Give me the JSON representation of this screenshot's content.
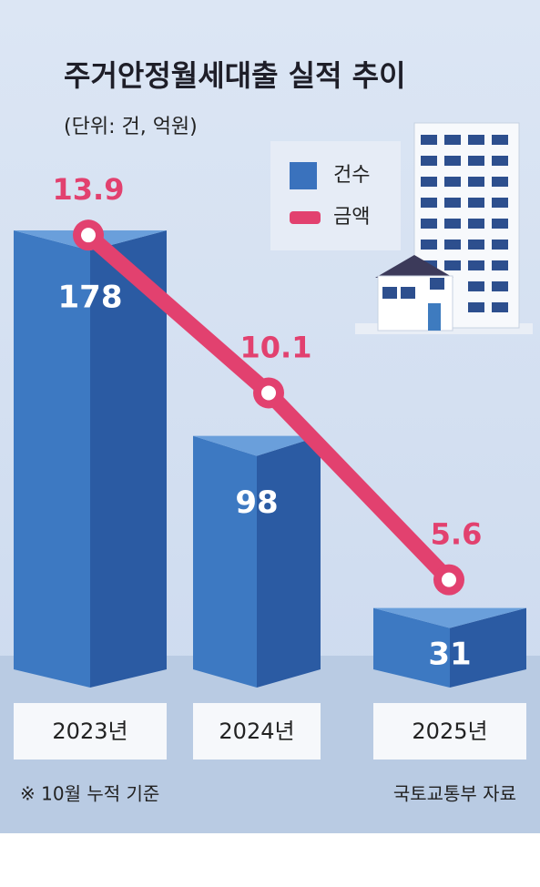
{
  "chart_data": {
    "type": "combo",
    "title": "주거안정월세대출 실적 추이",
    "subtitle": "(단위: 건, 억원)",
    "categories": [
      "2023년",
      "2024년",
      "2025년"
    ],
    "series": [
      {
        "name": "건수",
        "type": "bar",
        "color": "#3a72bd",
        "values": [
          178,
          98,
          31
        ]
      },
      {
        "name": "금액",
        "type": "line",
        "color": "#e2416f",
        "axis": "y2",
        "values": [
          13.9,
          10.1,
          5.6
        ]
      }
    ],
    "footnote": "※ 10월 누적 기준",
    "source": "국토교통부 자료"
  }
}
